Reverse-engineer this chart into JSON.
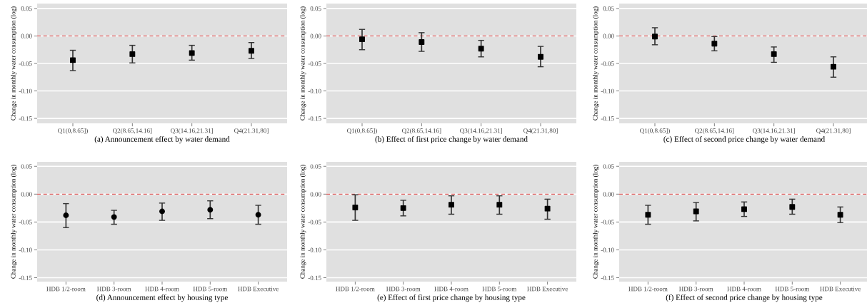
{
  "chart_data": [
    {
      "type": "scatter",
      "xlabel": "(a) Announcement effect by water demand",
      "ylabel": "Change in monthly water consumption (log)",
      "categories": [
        "Q1(0,8.65])",
        "Q2(8.65,14.16]",
        "Q3(14.16,21.31]",
        "Q4(21.31,80]"
      ],
      "values": [
        -0.044,
        -0.033,
        -0.031,
        -0.027
      ],
      "errors": [
        [
          -0.063,
          -0.026
        ],
        [
          -0.049,
          -0.017
        ],
        [
          -0.044,
          -0.017
        ],
        [
          -0.041,
          -0.012
        ]
      ],
      "color": "#000000",
      "marker": "square",
      "ylim": [
        -0.159,
        0.059
      ],
      "yticks": [
        {
          "value": 0.05,
          "label": "0.05"
        },
        {
          "value": 0,
          "label": "0.00"
        },
        {
          "value": -0.05,
          "label": "-0.05"
        },
        {
          "value": -0.1,
          "label": "-0.10"
        },
        {
          "value": -0.15,
          "label": "-0.15"
        }
      ],
      "grid": "y",
      "ref_lines": [
        {
          "axis": "y",
          "value": 0,
          "color": "#e06060",
          "line_style": "dashed"
        }
      ]
    },
    {
      "type": "scatter",
      "xlabel": "(b) Effect of first price change by water demand",
      "ylabel": "Change in monthly water consumption (log)",
      "categories": [
        "Q1(0,8.65])",
        "Q2(8.65,14.16]",
        "Q3(14.16,21.31]",
        "Q4(21.31,80]"
      ],
      "values": [
        -0.006,
        -0.011,
        -0.023,
        -0.038
      ],
      "errors": [
        [
          -0.025,
          0.012
        ],
        [
          -0.028,
          0.006
        ],
        [
          -0.038,
          -0.008
        ],
        [
          -0.056,
          -0.019
        ]
      ],
      "color": "#000000",
      "marker": "square",
      "ylim": [
        -0.159,
        0.059
      ],
      "yticks": [
        {
          "value": 0.05,
          "label": "0.05"
        },
        {
          "value": 0,
          "label": "0.00"
        },
        {
          "value": -0.05,
          "label": "-0.05"
        },
        {
          "value": -0.1,
          "label": "-0.10"
        },
        {
          "value": -0.15,
          "label": "-0.15"
        }
      ],
      "grid": "y",
      "ref_lines": [
        {
          "axis": "y",
          "value": 0,
          "color": "#e06060",
          "line_style": "dashed"
        }
      ]
    },
    {
      "type": "scatter",
      "xlabel": "(c) Effect of second price change by water demand",
      "ylabel": "Change in monthly water consumption (log)",
      "categories": [
        "Q1(0,8.65])",
        "Q2(8.65,14.16]",
        "Q3(14.16,21.31]",
        "Q4(21.31,80]"
      ],
      "values": [
        -0.001,
        -0.014,
        -0.033,
        -0.056
      ],
      "errors": [
        [
          -0.016,
          0.015
        ],
        [
          -0.027,
          -0.001
        ],
        [
          -0.048,
          -0.02
        ],
        [
          -0.075,
          -0.038
        ]
      ],
      "color": "#000000",
      "marker": "square",
      "ylim": [
        -0.159,
        0.059
      ],
      "yticks": [
        {
          "value": 0.05,
          "label": "0.05"
        },
        {
          "value": 0,
          "label": "0.00"
        },
        {
          "value": -0.05,
          "label": "-0.05"
        },
        {
          "value": -0.1,
          "label": "-0.10"
        },
        {
          "value": -0.15,
          "label": "-0.15"
        }
      ],
      "grid": "y",
      "ref_lines": [
        {
          "axis": "y",
          "value": 0,
          "color": "#e06060",
          "line_style": "dashed"
        }
      ]
    },
    {
      "type": "scatter",
      "xlabel": "(d) Announcement effect by housing type",
      "ylabel": "Change in monthly water consumption (log)",
      "categories": [
        "HDB 1/2-room",
        "HDB 3-room",
        "HDB 4-room",
        "HDB 5-room",
        "HDB Executive"
      ],
      "values": [
        -0.038,
        -0.041,
        -0.031,
        -0.028,
        -0.037
      ],
      "errors": [
        [
          -0.06,
          -0.017
        ],
        [
          -0.054,
          -0.029
        ],
        [
          -0.047,
          -0.016
        ],
        [
          -0.044,
          -0.012
        ],
        [
          -0.054,
          -0.02
        ]
      ],
      "color": "#000000",
      "marker": "circle",
      "ylim": [
        -0.157,
        0.058
      ],
      "yticks": [
        {
          "value": 0.05,
          "label": "0.05"
        },
        {
          "value": 0,
          "label": "0.00"
        },
        {
          "value": -0.05,
          "label": "-0.05"
        },
        {
          "value": -0.1,
          "label": "-0.10"
        },
        {
          "value": -0.15,
          "label": "-0.15"
        }
      ],
      "grid": "y",
      "ref_lines": [
        {
          "axis": "y",
          "value": 0,
          "color": "#e06060",
          "line_style": "dashed"
        }
      ]
    },
    {
      "type": "scatter",
      "xlabel": "(e) Effect of first price change by housing type",
      "ylabel": "Change in monthly water consumption (log)",
      "categories": [
        "HDB 1/2-room",
        "HDB 3-room",
        "HDB 4-room",
        "HDB 5-room",
        "HDB Executive"
      ],
      "values": [
        -0.024,
        -0.025,
        -0.019,
        -0.019,
        -0.026
      ],
      "errors": [
        [
          -0.047,
          -0.001
        ],
        [
          -0.039,
          -0.011
        ],
        [
          -0.036,
          -0.003
        ],
        [
          -0.036,
          -0.003
        ],
        [
          -0.045,
          -0.009
        ]
      ],
      "color": "#000000",
      "marker": "square",
      "ylim": [
        -0.157,
        0.058
      ],
      "yticks": [
        {
          "value": 0.05,
          "label": "0.05"
        },
        {
          "value": 0,
          "label": "0.00"
        },
        {
          "value": -0.05,
          "label": "-0.05"
        },
        {
          "value": -0.1,
          "label": "-0.10"
        },
        {
          "value": -0.15,
          "label": "-0.15"
        }
      ],
      "grid": "y",
      "ref_lines": [
        {
          "axis": "y",
          "value": 0,
          "color": "#e06060",
          "line_style": "dashed"
        }
      ]
    },
    {
      "type": "scatter",
      "xlabel": "(f) Effect of second price change by housing type",
      "ylabel": "Change in monthly water consumption (log)",
      "categories": [
        "HDB 1/2-room",
        "HDB 3-room",
        "HDB 4-room",
        "HDB 5-room",
        "HDB Executive"
      ],
      "values": [
        -0.037,
        -0.031,
        -0.027,
        -0.023,
        -0.037
      ],
      "errors": [
        [
          -0.054,
          -0.02
        ],
        [
          -0.048,
          -0.015
        ],
        [
          -0.04,
          -0.014
        ],
        [
          -0.036,
          -0.009
        ],
        [
          -0.051,
          -0.023
        ]
      ],
      "color": "#000000",
      "marker": "square",
      "ylim": [
        -0.157,
        0.058
      ],
      "yticks": [
        {
          "value": 0.05,
          "label": "0.05"
        },
        {
          "value": 0,
          "label": "0.00"
        },
        {
          "value": -0.05,
          "label": "-0.05"
        },
        {
          "value": -0.1,
          "label": "-0.10"
        },
        {
          "value": -0.15,
          "label": "-0.15"
        }
      ],
      "grid": "y",
      "ref_lines": [
        {
          "axis": "y",
          "value": 0,
          "color": "#e06060",
          "line_style": "dashed"
        }
      ]
    }
  ]
}
